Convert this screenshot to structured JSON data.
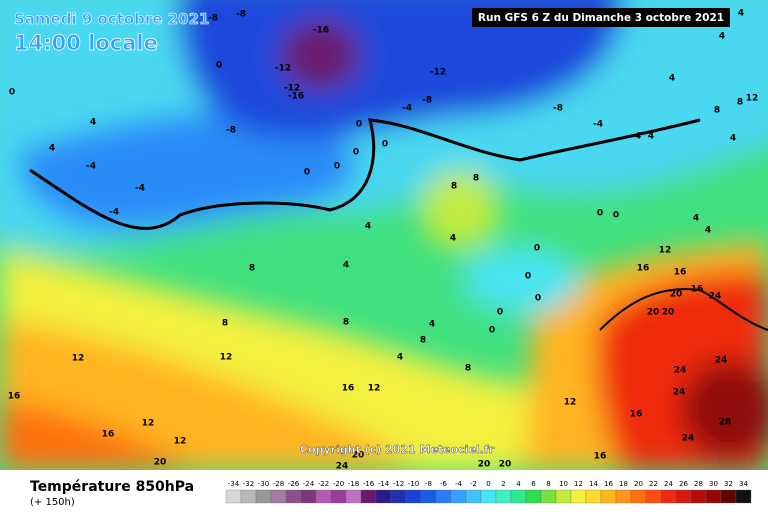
{
  "header": {
    "date": "Samedi 9 octobre 2021",
    "time": "14:00 locale",
    "run": "Run GFS 6 Z du Dimanche 3 octobre 2021"
  },
  "footer": {
    "title": "Température 850hPa",
    "subtitle": "(+ 150h)",
    "copyright": "Copyright (c) 2021 Meteociel.fr"
  },
  "scale": {
    "values": [
      -34,
      -32,
      -30,
      -28,
      -26,
      -24,
      -22,
      -20,
      -18,
      -16,
      -14,
      -12,
      -10,
      -8,
      -6,
      -4,
      -2,
      0,
      2,
      4,
      6,
      8,
      10,
      12,
      14,
      16,
      18,
      20,
      22,
      24,
      26,
      28,
      30,
      32,
      34
    ],
    "colors": [
      "#d8d8d8",
      "#b8b8b8",
      "#989898",
      "#a07ca0",
      "#8c508c",
      "#7a3a7a",
      "#b45ab4",
      "#9a3c9a",
      "#c070c0",
      "#6a1a6a",
      "#2a1a8a",
      "#2030b0",
      "#1c40d8",
      "#1a5ae8",
      "#2a7cf4",
      "#3aa0ff",
      "#40c4ff",
      "#48e4f0",
      "#40f0c0",
      "#30e890",
      "#30dc50",
      "#7ae040",
      "#c0ec40",
      "#f4f040",
      "#ffd830",
      "#ffb420",
      "#ff9418",
      "#ff7010",
      "#ff4c10",
      "#f02a10",
      "#d81810",
      "#b40c0c",
      "#900808",
      "#600404",
      "#101010"
    ]
  },
  "contour_labels": [
    -8,
    -8,
    -16,
    -12,
    -12,
    -12,
    -16,
    -8,
    -4,
    -8,
    -4,
    -8,
    0,
    0,
    0,
    0,
    0,
    -4,
    -4,
    -4,
    4,
    4,
    0,
    0,
    8,
    8,
    4,
    4,
    8,
    8,
    4,
    0,
    0,
    0,
    0,
    0,
    4,
    8,
    8,
    4,
    8,
    12,
    12,
    16,
    16,
    12,
    12,
    20,
    16,
    12,
    12,
    16,
    16,
    24,
    28,
    24,
    24,
    24,
    20,
    20,
    20,
    24,
    16,
    16,
    16,
    12,
    4,
    4,
    0,
    0,
    4,
    4,
    4,
    8,
    12,
    8,
    4,
    4,
    4,
    20,
    20,
    24,
    20
  ]
}
